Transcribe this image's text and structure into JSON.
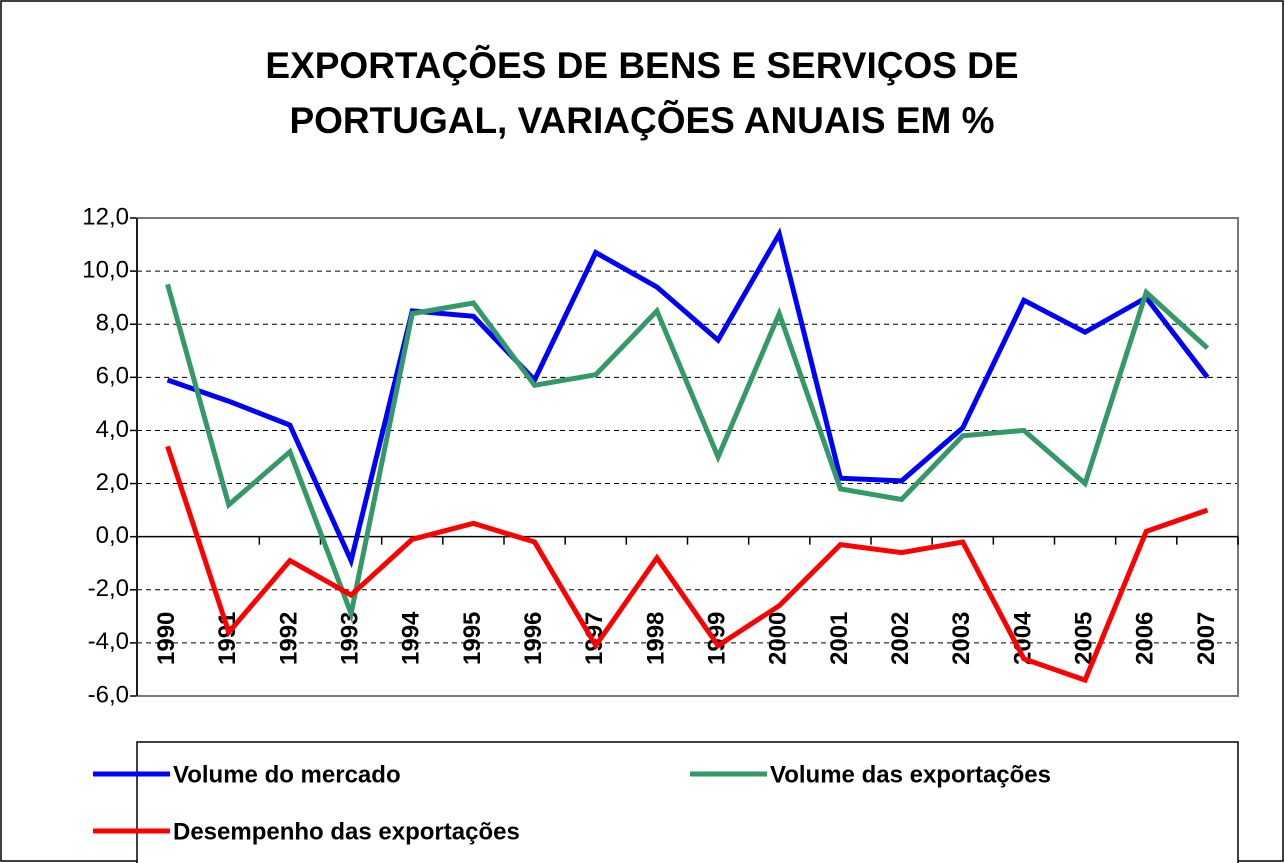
{
  "chart_data": {
    "type": "line",
    "title": "EXPORTAÇÕES DE BENS E SERVIÇOS DE PORTUGAL, VARIAÇÕES ANUAIS EM %",
    "categories": [
      "1990",
      "1991",
      "1992",
      "1993",
      "1994",
      "1995",
      "1996",
      "1997",
      "1998",
      "1999",
      "2000",
      "2001",
      "2002",
      "2003",
      "2004",
      "2005",
      "2006",
      "2007"
    ],
    "series": [
      {
        "name": "Volume do mercado",
        "color": "#0000ff",
        "values": [
          5.9,
          5.1,
          4.2,
          -0.9,
          8.5,
          8.3,
          5.9,
          10.7,
          9.4,
          7.4,
          11.4,
          2.2,
          2.1,
          4.1,
          8.9,
          7.7,
          9.0,
          6.0
        ]
      },
      {
        "name": "Volume das exportações",
        "color": "#339966",
        "values": [
          9.5,
          1.2,
          3.2,
          -2.9,
          8.4,
          8.8,
          5.7,
          6.1,
          8.5,
          3.0,
          8.4,
          1.8,
          1.4,
          3.8,
          4.0,
          2.0,
          9.2,
          7.1
        ]
      },
      {
        "name": "Desempenho das exportações",
        "color": "#ff0000",
        "values": [
          3.4,
          -3.6,
          -0.9,
          -2.2,
          -0.1,
          0.5,
          -0.2,
          -4.1,
          -0.8,
          -4.1,
          -2.6,
          -0.3,
          -0.6,
          -0.2,
          -4.6,
          -5.4,
          0.2,
          1.0
        ]
      }
    ],
    "ylim": [
      -6,
      12
    ],
    "yticks": [
      {
        "value": -6,
        "label": "-6,0"
      },
      {
        "value": -4,
        "label": "-4,0"
      },
      {
        "value": -2,
        "label": "-2,0"
      },
      {
        "value": 0,
        "label": "0,0"
      },
      {
        "value": 2,
        "label": "2,0"
      },
      {
        "value": 4,
        "label": "4,0"
      },
      {
        "value": 6,
        "label": "6,0"
      },
      {
        "value": 8,
        "label": "8,0"
      },
      {
        "value": 10,
        "label": "10,0"
      },
      {
        "value": 12,
        "label": "12,0"
      }
    ],
    "grid": true
  }
}
